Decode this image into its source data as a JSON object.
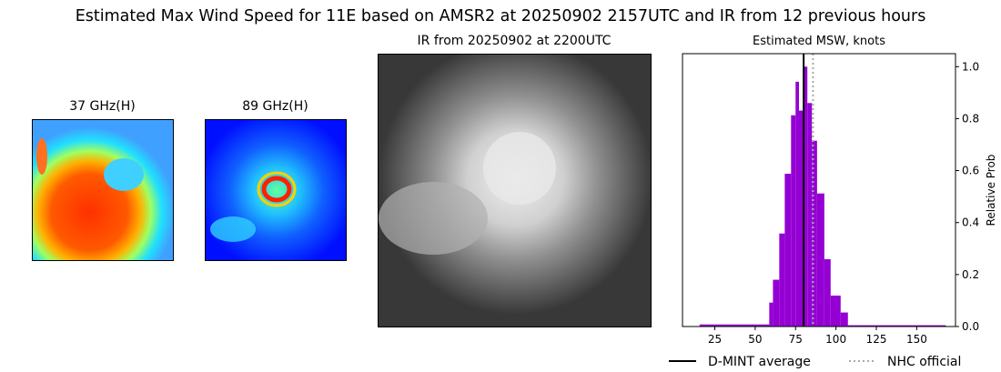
{
  "title": "Estimated Max Wind Speed for 11E based on AMSR2 at 20250902 2157UTC and IR from 12 previous hours",
  "panels": {
    "ghz37_title": "37 GHz(H)",
    "ghz89_title": "89 GHz(H)",
    "ir_title": "IR from 20250902 at 2200UTC"
  },
  "chart_data": {
    "type": "bar",
    "title": "Estimated MSW, knots",
    "xlabel": "",
    "ylabel": "Relative Prob",
    "xlim": [
      5,
      174
    ],
    "ylim": [
      0,
      1.05
    ],
    "xticks": [
      "25",
      "50",
      "75",
      "100",
      "125",
      "150"
    ],
    "yticks": [
      "0.0",
      "0.2",
      "0.4",
      "0.6",
      "0.8",
      "1.0"
    ],
    "bar_color": "#9400d3",
    "bins": [
      {
        "x0": 15.6,
        "x1": 58.7,
        "value": 0.008
      },
      {
        "x0": 58.7,
        "x1": 61.0,
        "value": 0.092
      },
      {
        "x0": 61.0,
        "x1": 64.9,
        "value": 0.18
      },
      {
        "x0": 64.9,
        "x1": 68.3,
        "value": 0.358
      },
      {
        "x0": 68.3,
        "x1": 72.2,
        "value": 0.588
      },
      {
        "x0": 72.2,
        "x1": 75.0,
        "value": 0.813
      },
      {
        "x0": 75.0,
        "x1": 77.1,
        "value": 0.942
      },
      {
        "x0": 77.1,
        "x1": 79.9,
        "value": 0.831
      },
      {
        "x0": 79.9,
        "x1": 82.3,
        "value": 1.0
      },
      {
        "x0": 82.3,
        "x1": 85.1,
        "value": 0.86
      },
      {
        "x0": 85.1,
        "x1": 88.3,
        "value": 0.715
      },
      {
        "x0": 88.3,
        "x1": 92.8,
        "value": 0.512
      },
      {
        "x0": 92.8,
        "x1": 96.7,
        "value": 0.259
      },
      {
        "x0": 96.7,
        "x1": 102.9,
        "value": 0.119
      },
      {
        "x0": 102.9,
        "x1": 107.4,
        "value": 0.054
      },
      {
        "x0": 107.4,
        "x1": 168.0,
        "value": 0.005
      }
    ],
    "lines": [
      {
        "name": "D-MINT average",
        "x": 80,
        "color": "#000000",
        "style": "solid"
      },
      {
        "name": "NHC official",
        "x": 85.8,
        "color": "#a9a9a9",
        "style": "dotted"
      }
    ],
    "legend": "bottom"
  }
}
